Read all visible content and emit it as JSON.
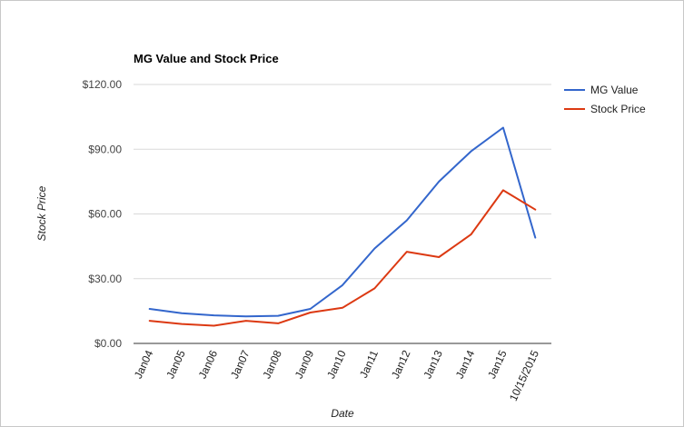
{
  "chart_data": {
    "type": "line",
    "title": "MG Value and Stock Price",
    "xlabel": "Date",
    "ylabel": "Stock Price",
    "categories": [
      "Jan04",
      "Jan05",
      "Jan06",
      "Jan07",
      "Jan08",
      "Jan09",
      "Jan10",
      "Jan11",
      "Jan12",
      "Jan13",
      "Jan14",
      "Jan15",
      "10/15/2015"
    ],
    "series": [
      {
        "name": "MG Value",
        "color": "#3366cc",
        "values": [
          16,
          14,
          13,
          12.5,
          12.8,
          16,
          27,
          44,
          57,
          75,
          89,
          100,
          49
        ]
      },
      {
        "name": "Stock Price",
        "color": "#dc3912",
        "values": [
          10.5,
          9,
          8.2,
          10.5,
          9.3,
          14.3,
          16.5,
          25.5,
          42.5,
          40,
          50.5,
          71,
          62
        ]
      }
    ],
    "ylim": [
      0,
      120
    ],
    "yticks": [
      0,
      30,
      60,
      90,
      120
    ],
    "ytick_labels": [
      "$0.00",
      "$30.00",
      "$60.00",
      "$90.00",
      "$120.00"
    ],
    "grid": true,
    "legend_position": "right"
  }
}
